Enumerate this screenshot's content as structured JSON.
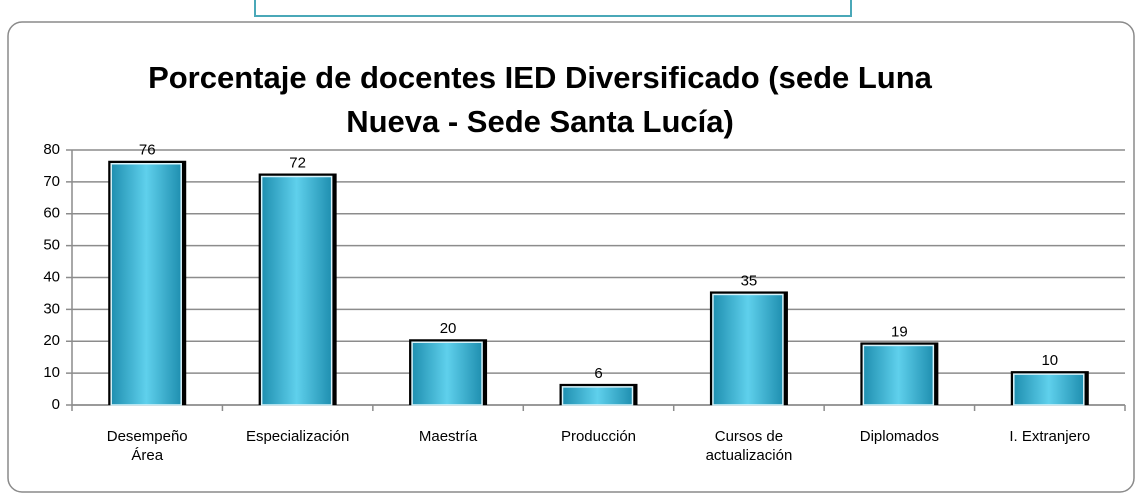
{
  "chart_data": {
    "type": "bar",
    "title": "Porcentaje de docentes IED Diversificado (sede Luna Nueva - Sede Santa Lucía)",
    "categories": [
      "Desempeño\nÁrea",
      "Especialización",
      "Maestría",
      "Producción",
      "Cursos de\nactualización",
      "Diplomados",
      "I. Extranjero"
    ],
    "values": [
      76,
      72,
      20,
      6,
      35,
      19,
      10
    ],
    "color": "#38b6d6",
    "ylim": [
      0,
      80
    ],
    "yticks": [
      0,
      10,
      20,
      30,
      40,
      50,
      60,
      70,
      80
    ],
    "grid": true
  }
}
